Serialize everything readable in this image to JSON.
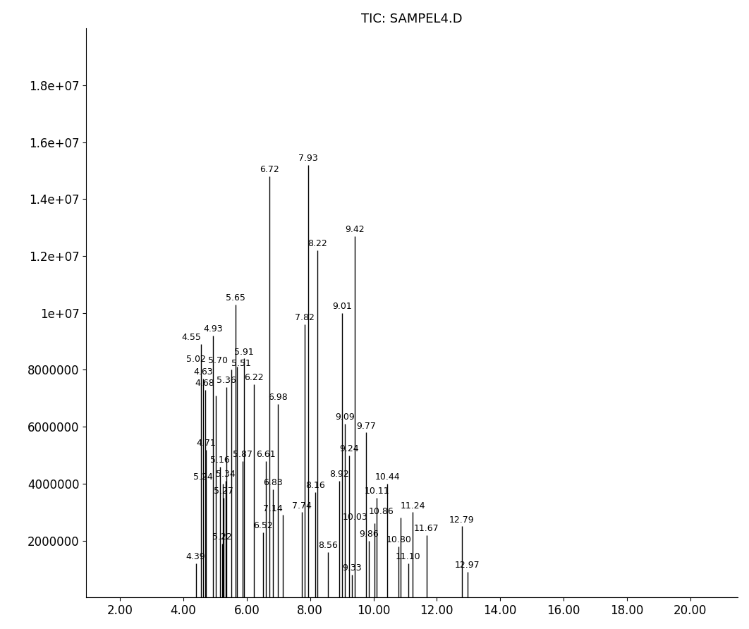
{
  "chart_data": {
    "type": "line",
    "title": "TIC: SAMPEL4.D",
    "color": "#000000",
    "x": [
      4.39,
      4.55,
      4.63,
      4.68,
      4.71,
      4.93,
      5.02,
      5.16,
      5.22,
      5.24,
      5.27,
      5.34,
      5.36,
      5.51,
      5.65,
      5.7,
      5.87,
      5.91,
      6.22,
      6.52,
      6.61,
      6.72,
      6.83,
      6.98,
      7.14,
      7.74,
      7.82,
      7.93,
      8.16,
      8.22,
      8.56,
      8.92,
      9.01,
      9.09,
      9.24,
      9.33,
      9.42,
      9.77,
      9.86,
      10.03,
      10.11,
      10.44,
      10.8,
      10.86,
      11.1,
      11.24,
      11.67,
      12.79,
      12.97
    ],
    "values": [
      1200000,
      8900000,
      7700000,
      7300000,
      5200000,
      9200000,
      7100000,
      4600000,
      1900000,
      4000000,
      3500000,
      4100000,
      7400000,
      8000000,
      10300000,
      8100000,
      4800000,
      8400000,
      7500000,
      2300000,
      4800000,
      14800000,
      3800000,
      6800000,
      2900000,
      3000000,
      9600000,
      15200000,
      3700000,
      12200000,
      1600000,
      4100000,
      10000000,
      6100000,
      5000000,
      800000,
      12700000,
      5800000,
      2000000,
      2600000,
      3500000,
      4000000,
      1800000,
      2800000,
      1200000,
      3000000,
      2200000,
      2500000,
      900000
    ],
    "peak_labels": [
      "4.39",
      "4.55",
      "4.63",
      "4.68",
      "4.71",
      "4.93",
      "5.02",
      "5.16",
      "5.22",
      "5.24",
      "5.27",
      "5.34",
      "5.36",
      "5.51",
      "5.65",
      "5.70",
      "5.87",
      "5.91",
      "6.22",
      "6.52",
      "6.61",
      "6.72",
      "6.83",
      "6.98",
      "7.14",
      "7.74",
      "7.82",
      "7.93",
      "8.16",
      "8.22",
      "8.56",
      "8.92",
      "9.01",
      "9.09",
      "9.24",
      "9.33",
      "9.42",
      "9.77",
      "9.86",
      "10.03",
      "10.11",
      "10.44",
      "10.80",
      "10.86",
      "11.10",
      "11.24",
      "11.67",
      "12.79",
      "12.97"
    ],
    "xlim": [
      0.93,
      21.5
    ],
    "ylim": [
      0,
      20000000
    ],
    "xticks": [
      {
        "value": 2,
        "label": "2.00"
      },
      {
        "value": 4,
        "label": "4.00"
      },
      {
        "value": 6,
        "label": "6.00"
      },
      {
        "value": 8,
        "label": "8.00"
      },
      {
        "value": 10,
        "label": "10.00"
      },
      {
        "value": 12,
        "label": "12.00"
      },
      {
        "value": 14,
        "label": "14.00"
      },
      {
        "value": 16,
        "label": "16.00"
      },
      {
        "value": 18,
        "label": "18.00"
      },
      {
        "value": 20,
        "label": "20.00"
      }
    ],
    "yticks": [
      2000000,
      4000000,
      6000000,
      8000000,
      {
        "value": 10000000,
        "label": "1e+07"
      },
      {
        "value": 12000000,
        "label": "1.2e+07"
      },
      {
        "value": 14000000,
        "label": "1.4e+07"
      },
      {
        "value": 16000000,
        "label": "1.6e+07"
      },
      {
        "value": 18000000,
        "label": "1.8e+07"
      }
    ],
    "grid": false
  }
}
